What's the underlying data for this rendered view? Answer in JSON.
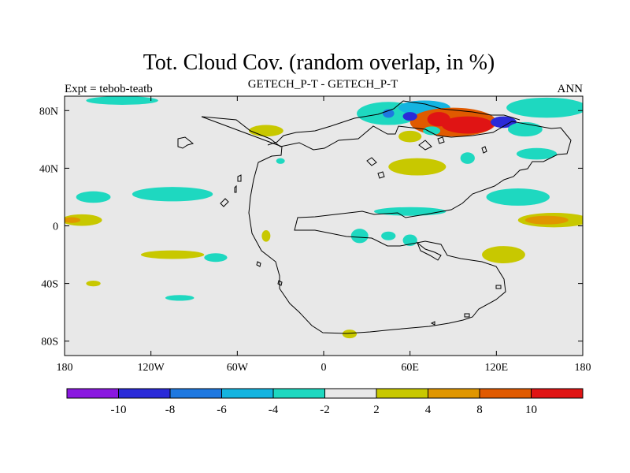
{
  "chart_data": {
    "type": "heatmap",
    "title": "Tot. Cloud Cov. (random overlap, in %)",
    "left_label": "Expt = tebob-teatb",
    "center_label": "GETECH_P-T - GETECH_P-T",
    "right_label": "ANN",
    "xlim": [
      -180,
      180
    ],
    "ylim": [
      -90,
      90
    ],
    "x_ticks": [
      {
        "value": -180,
        "label": "180"
      },
      {
        "value": -120,
        "label": "120W"
      },
      {
        "value": -60,
        "label": "60W"
      },
      {
        "value": 0,
        "label": "0"
      },
      {
        "value": 60,
        "label": "60E"
      },
      {
        "value": 120,
        "label": "120E"
      },
      {
        "value": 180,
        "label": "180"
      }
    ],
    "y_ticks": [
      {
        "value": 80,
        "label": "80N"
      },
      {
        "value": 40,
        "label": "40N"
      },
      {
        "value": 0,
        "label": "0"
      },
      {
        "value": -40,
        "label": "40S"
      },
      {
        "value": -80,
        "label": "80S"
      }
    ],
    "colorbar": {
      "colors": [
        "#8a18e0",
        "#2a2ad8",
        "#1e78e0",
        "#14b4e0",
        "#1ed8c0",
        "#e8e8e8",
        "#c8c800",
        "#e09600",
        "#e05a00",
        "#e01414"
      ],
      "boundaries": [
        {
          "value": -12,
          "label": ""
        },
        {
          "value": -10,
          "label": "-10"
        },
        {
          "value": -8,
          "label": "-8"
        },
        {
          "value": -6,
          "label": "-6"
        },
        {
          "value": -4,
          "label": "-4"
        },
        {
          "value": -2,
          "label": "-2"
        },
        {
          "value": 2,
          "label": "2"
        },
        {
          "value": 4,
          "label": "4"
        },
        {
          "value": 8,
          "label": "8"
        },
        {
          "value": 10,
          "label": "10"
        },
        {
          "value": 12,
          "label": ""
        }
      ]
    },
    "background_level": 5,
    "anomaly_regions": [
      {
        "lon": 155,
        "lat": 82,
        "rlon": 28,
        "rlat": 7,
        "level": 4
      },
      {
        "lon": 45,
        "lat": 78,
        "rlon": 22,
        "rlat": 8,
        "level": 4
      },
      {
        "lon": 70,
        "lat": 82,
        "rlon": 18,
        "rlat": 5,
        "level": 3
      },
      {
        "lon": 90,
        "lat": 72,
        "rlon": 30,
        "rlat": 10,
        "level": 8
      },
      {
        "lon": 100,
        "lat": 70,
        "rlon": 18,
        "rlat": 6,
        "level": 9
      },
      {
        "lon": 80,
        "lat": 74,
        "rlon": 8,
        "rlat": 5,
        "level": 9
      },
      {
        "lon": 45,
        "lat": 78,
        "rlon": 4,
        "rlat": 3,
        "level": 2
      },
      {
        "lon": 60,
        "lat": 76,
        "rlon": 5,
        "rlat": 3,
        "level": 1
      },
      {
        "lon": 125,
        "lat": 72,
        "rlon": 9,
        "rlat": 4,
        "level": 1
      },
      {
        "lon": 140,
        "lat": 67,
        "rlon": 12,
        "rlat": 5,
        "level": 4
      },
      {
        "lon": 60,
        "lat": 62,
        "rlon": 8,
        "rlat": 4,
        "level": 6
      },
      {
        "lon": 75,
        "lat": 66,
        "rlon": 6,
        "rlat": 3,
        "level": 4
      },
      {
        "lon": 65,
        "lat": 41,
        "rlon": 20,
        "rlat": 6,
        "level": 6
      },
      {
        "lon": 100,
        "lat": 47,
        "rlon": 5,
        "rlat": 4,
        "level": 4
      },
      {
        "lon": 148,
        "lat": 50,
        "rlon": 14,
        "rlat": 4,
        "level": 4
      },
      {
        "lon": 135,
        "lat": 20,
        "rlon": 22,
        "rlat": 6,
        "level": 4
      },
      {
        "lon": 60,
        "lat": 10,
        "rlon": 25,
        "rlat": 3,
        "level": 4
      },
      {
        "lon": 160,
        "lat": 4,
        "rlon": 25,
        "rlat": 5,
        "level": 6
      },
      {
        "lon": 155,
        "lat": 4,
        "rlon": 15,
        "rlat": 3,
        "level": 7
      },
      {
        "lon": -168,
        "lat": 4,
        "rlon": 14,
        "rlat": 4,
        "level": 6
      },
      {
        "lon": -175,
        "lat": 4,
        "rlon": 6,
        "rlat": 2,
        "level": 7
      },
      {
        "lon": -105,
        "lat": 22,
        "rlon": 28,
        "rlat": 5,
        "level": 4
      },
      {
        "lon": -160,
        "lat": 20,
        "rlon": 12,
        "rlat": 4,
        "level": 4
      },
      {
        "lon": -105,
        "lat": -20,
        "rlon": 22,
        "rlat": 3,
        "level": 6
      },
      {
        "lon": -75,
        "lat": -22,
        "rlon": 8,
        "rlat": 3,
        "level": 4
      },
      {
        "lon": -40,
        "lat": 66,
        "rlon": 12,
        "rlat": 4,
        "level": 6
      },
      {
        "lon": -30,
        "lat": 45,
        "rlon": 3,
        "rlat": 2,
        "level": 4
      },
      {
        "lon": 25,
        "lat": -7,
        "rlon": 6,
        "rlat": 5,
        "level": 4
      },
      {
        "lon": 60,
        "lat": -10,
        "rlon": 5,
        "rlat": 4,
        "level": 4
      },
      {
        "lon": 45,
        "lat": -7,
        "rlon": 5,
        "rlat": 3,
        "level": 4
      },
      {
        "lon": 125,
        "lat": -20,
        "rlon": 15,
        "rlat": 6,
        "level": 6
      },
      {
        "lon": -100,
        "lat": -50,
        "rlon": 10,
        "rlat": 2,
        "level": 4
      },
      {
        "lon": -160,
        "lat": -40,
        "rlon": 5,
        "rlat": 2,
        "level": 6
      },
      {
        "lon": -40,
        "lat": -7,
        "rlon": 3,
        "rlat": 4,
        "level": 6
      },
      {
        "lon": 18,
        "lat": -75,
        "rlon": 5,
        "rlat": 3,
        "level": 6
      },
      {
        "lon": -140,
        "lat": 87,
        "rlon": 25,
        "rlat": 3,
        "level": 4
      }
    ]
  }
}
